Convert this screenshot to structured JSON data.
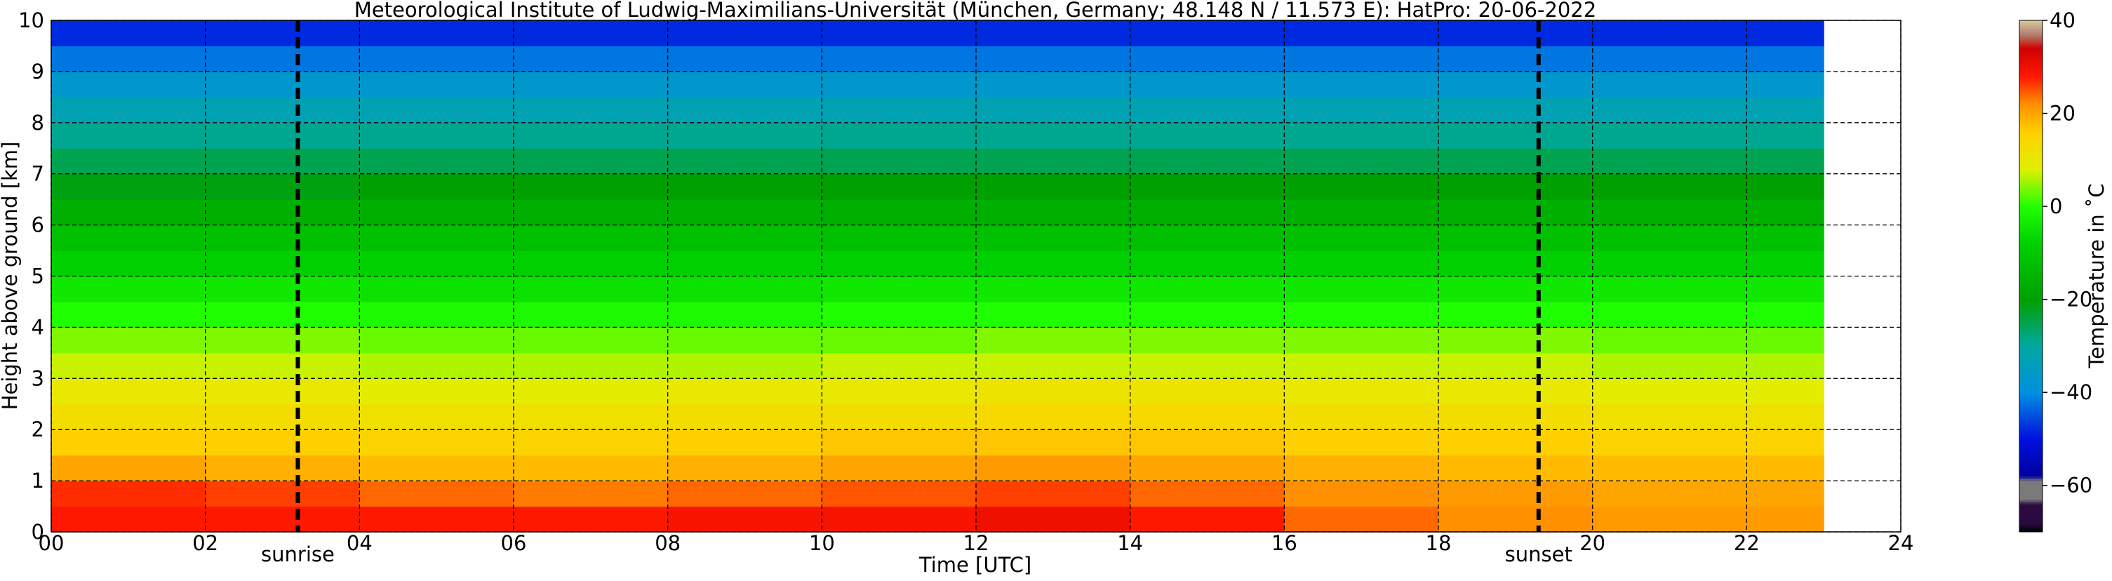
{
  "chart_data": {
    "type": "heatmap",
    "title": "Meteorological Institute of Ludwig-Maximilians-Universität (München, Germany; 48.148 N / 11.573 E):    HatPro: 20-06-2022",
    "x_label": "Time [UTC]",
    "y_label": "Height above ground [km]",
    "colorbar_label": "Temperature in ˚C",
    "x_bins": [
      0,
      2,
      4,
      6,
      8,
      10,
      12,
      14,
      16,
      18,
      20,
      22,
      23
    ],
    "y_bins": [
      0,
      0.5,
      1,
      1.5,
      2,
      2.5,
      3,
      3.5,
      4,
      4.5,
      5,
      5.5,
      6,
      6.5,
      7,
      7.5,
      8,
      8.5,
      9,
      9.5,
      10
    ],
    "z": [
      [
        28,
        28,
        28,
        28,
        29,
        29,
        30,
        28,
        24,
        22,
        21,
        21
      ],
      [
        27,
        26,
        24,
        23,
        24,
        25,
        26,
        24,
        22,
        21,
        20,
        20
      ],
      [
        20,
        19,
        18,
        18,
        19,
        20,
        21,
        20,
        19,
        18,
        18,
        18
      ],
      [
        16,
        16,
        15,
        15,
        16,
        17,
        17,
        17,
        16,
        16,
        15,
        15
      ],
      [
        13,
        13,
        12,
        12,
        13,
        13,
        14,
        14,
        13,
        13,
        12,
        12
      ],
      [
        10,
        10,
        9,
        9,
        10,
        10,
        11,
        11,
        10,
        10,
        9,
        9
      ],
      [
        7,
        7,
        6,
        6,
        6,
        7,
        7,
        7,
        7,
        7,
        6,
        6
      ],
      [
        4,
        4,
        3,
        3,
        3,
        3,
        4,
        4,
        4,
        4,
        3,
        3
      ],
      [
        0,
        0,
        -1,
        -1,
        -1,
        0,
        0,
        0,
        0,
        0,
        0,
        0
      ],
      [
        -4,
        -4,
        -5,
        -5,
        -5,
        -4,
        -4,
        -4,
        -4,
        -4,
        -4,
        -4
      ],
      [
        -8,
        -8,
        -8,
        -8,
        -8,
        -8,
        -8,
        -8,
        -8,
        -8,
        -8,
        -8
      ],
      [
        -12,
        -12,
        -12,
        -12,
        -12,
        -12,
        -12,
        -12,
        -12,
        -12,
        -12,
        -12
      ],
      [
        -16,
        -16,
        -16,
        -16,
        -16,
        -16,
        -16,
        -16,
        -16,
        -16,
        -16,
        -16
      ],
      [
        -21,
        -21,
        -20,
        -20,
        -20,
        -20,
        -20,
        -20,
        -20,
        -20,
        -20,
        -20
      ],
      [
        -25,
        -25,
        -25,
        -25,
        -25,
        -25,
        -25,
        -25,
        -25,
        -25,
        -25,
        -25
      ],
      [
        -29,
        -29,
        -29,
        -29,
        -29,
        -29,
        -29,
        -29,
        -29,
        -29,
        -29,
        -29
      ],
      [
        -33,
        -33,
        -33,
        -33,
        -33,
        -33,
        -33,
        -33,
        -33,
        -33,
        -33,
        -33
      ],
      [
        -37,
        -37,
        -37,
        -37,
        -37,
        -37,
        -37,
        -37,
        -37,
        -37,
        -37,
        -37
      ],
      [
        -42,
        -42,
        -42,
        -42,
        -42,
        -42,
        -42,
        -42,
        -42,
        -42,
        -42,
        -42
      ],
      [
        -48,
        -48,
        -48,
        -48,
        -48,
        -48,
        -48,
        -48,
        -48,
        -48,
        -48,
        -48
      ]
    ],
    "xlim": [
      0,
      24
    ],
    "xticks": [
      {
        "value": 0,
        "label": "00"
      },
      {
        "value": 2,
        "label": "02"
      },
      {
        "value": 4,
        "label": "04"
      },
      {
        "value": 6,
        "label": "06"
      },
      {
        "value": 8,
        "label": "08"
      },
      {
        "value": 10,
        "label": "10"
      },
      {
        "value": 12,
        "label": "12"
      },
      {
        "value": 14,
        "label": "14"
      },
      {
        "value": 16,
        "label": "16"
      },
      {
        "value": 18,
        "label": "18"
      },
      {
        "value": 20,
        "label": "20"
      },
      {
        "value": 22,
        "label": "22"
      },
      {
        "value": 24,
        "label": "24"
      }
    ],
    "ylim": [
      0,
      10
    ],
    "yticks": [
      0,
      1,
      2,
      3,
      4,
      5,
      6,
      7,
      8,
      9,
      10
    ],
    "clim": [
      -70,
      40
    ],
    "cticks": [
      {
        "value": -60,
        "label": "−60"
      },
      {
        "value": -40,
        "label": "−40"
      },
      {
        "value": -20,
        "label": "−20"
      },
      0,
      20,
      40
    ],
    "colorscale": [
      [
        -70,
        "#000000"
      ],
      [
        -68,
        "#2b0b3f"
      ],
      [
        -64,
        "#2b0b3f"
      ],
      [
        -63,
        "#7a7a7a"
      ],
      [
        -59,
        "#7a7a7a"
      ],
      [
        -58,
        "#0000a0"
      ],
      [
        -50,
        "#0010e0"
      ],
      [
        -40,
        "#0090e0"
      ],
      [
        -30,
        "#00a8a0"
      ],
      [
        -20,
        "#00a000"
      ],
      [
        -8,
        "#00d000"
      ],
      [
        0,
        "#20ff00"
      ],
      [
        8,
        "#e0f000"
      ],
      [
        16,
        "#ffd000"
      ],
      [
        22,
        "#ff9000"
      ],
      [
        28,
        "#ff1800"
      ],
      [
        34,
        "#d00000"
      ],
      [
        37,
        "#b08070"
      ],
      [
        40,
        "#d8c8a0"
      ]
    ],
    "grid": true,
    "annotations": [
      {
        "label": "sunrise",
        "x": 3.2
      },
      {
        "label": "sunset",
        "x": 19.3
      }
    ]
  }
}
